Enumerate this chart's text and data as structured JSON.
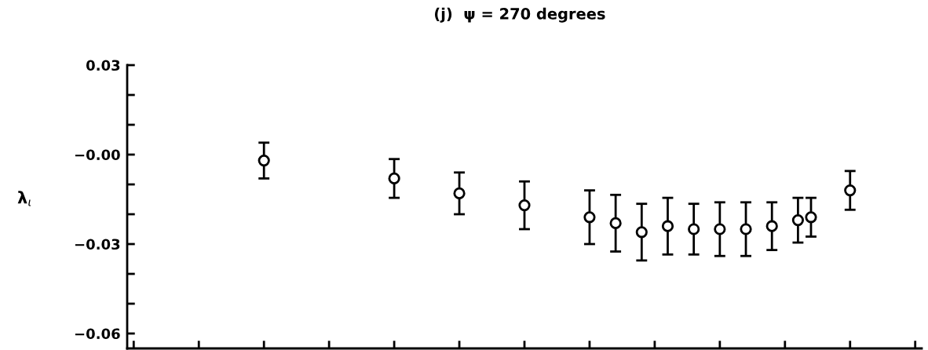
{
  "chart_data": {
    "type": "scatter",
    "title": "(j)  ψ = 270 degrees",
    "ylabel": "λ$_{ι}$",
    "categories": [
      null,
      null,
      null,
      null,
      null,
      null,
      null,
      null,
      null,
      null,
      null,
      null,
      null,
      null,
      null,
      null,
      null,
      null,
      null,
      null,
      null,
      null,
      null,
      null,
      null,
      null,
      null,
      null,
      null,
      null,
      null,
      null,
      null,
      null,
      null,
      null,
      null,
      null,
      null,
      null,
      null,
      null,
      null,
      null,
      null,
      null,
      null,
      null,
      null,
      null,
      null,
      null,
      null,
      null,
      null,
      null,
      null,
      null,
      null,
      null,
      null
    ],
    "series": [
      {
        "color": "#000000",
        "values": [
          null,
          null,
          null,
          null,
          null,
          null,
          null,
          null,
          null,
          null,
          -0.002,
          null,
          null,
          null,
          null,
          null,
          null,
          null,
          null,
          null,
          -0.008,
          null,
          null,
          null,
          null,
          -0.013,
          null,
          null,
          null,
          null,
          -0.017,
          null,
          null,
          null,
          null,
          -0.021,
          null,
          -0.023,
          null,
          -0.026,
          null,
          -0.024,
          null,
          -0.025,
          null,
          -0.025,
          null,
          -0.025,
          null,
          -0.024,
          null,
          -0.022,
          -0.021,
          null,
          null,
          -0.012,
          null,
          null,
          null,
          null,
          null
        ],
        "errors": [
          null,
          null,
          null,
          null,
          null,
          null,
          null,
          null,
          null,
          null,
          0.006,
          null,
          null,
          null,
          null,
          null,
          null,
          null,
          null,
          null,
          0.0065,
          null,
          null,
          null,
          null,
          0.007,
          null,
          null,
          null,
          null,
          0.008,
          null,
          null,
          null,
          null,
          0.009,
          null,
          0.0095,
          null,
          0.0095,
          null,
          0.0095,
          null,
          0.0085,
          null,
          0.009,
          null,
          0.009,
          null,
          0.008,
          null,
          0.0075,
          0.0065,
          null,
          null,
          0.0065,
          null,
          null,
          null,
          null,
          null
        ]
      }
    ],
    "ylim": [
      -0.065,
      0.03
    ],
    "yticks": [
      {
        "value": -0.06,
        "label": "−0.06"
      },
      {
        "value": -0.05,
        "label": null
      },
      {
        "value": -0.04,
        "label": null
      },
      {
        "value": -0.03,
        "label": "−0.03"
      },
      {
        "value": -0.02,
        "label": null
      },
      {
        "value": -0.01,
        "label": null
      },
      {
        "value": 0,
        "label": "−0.00"
      },
      {
        "value": 0.01,
        "label": null
      },
      {
        "value": 0.02,
        "label": null
      },
      {
        "value": 0.03,
        "label": "0.03"
      }
    ],
    "marker": "circle",
    "grid": false,
    "legend": false,
    "tick_labels": "y"
  }
}
